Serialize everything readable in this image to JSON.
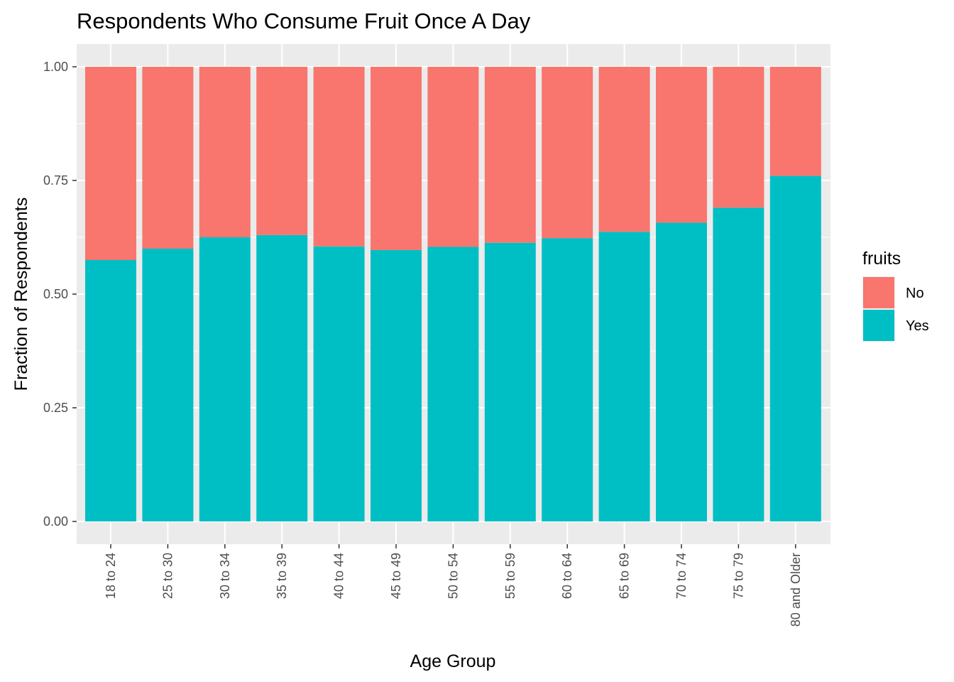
{
  "chart_data": {
    "type": "bar",
    "stacked": true,
    "normalized": true,
    "title": "Respondents Who Consume Fruit Once A Day",
    "xlabel": "Age Group",
    "ylabel": "Fraction of Respondents",
    "ylim": [
      0,
      1
    ],
    "yticks": [
      "0.00",
      "0.25",
      "0.50",
      "0.75",
      "1.00"
    ],
    "ytick_values": [
      0,
      0.25,
      0.5,
      0.75,
      1
    ],
    "grid": true,
    "background": "#ebebeb",
    "categories": [
      "18 to 24",
      "25 to 30",
      "30 to 34",
      "35 to 39",
      "40 to 44",
      "45 to 49",
      "50 to 54",
      "55 to 59",
      "60 to 64",
      "65 to 69",
      "70 to 74",
      "75 to 79",
      "80 and Older"
    ],
    "series": [
      {
        "name": "Yes",
        "color": "#00bfc4",
        "values": [
          0.575,
          0.6,
          0.625,
          0.63,
          0.605,
          0.597,
          0.604,
          0.613,
          0.623,
          0.637,
          0.657,
          0.69,
          0.76
        ]
      },
      {
        "name": "No",
        "color": "#f8766d",
        "values": [
          0.425,
          0.4,
          0.375,
          0.37,
          0.395,
          0.403,
          0.396,
          0.387,
          0.377,
          0.363,
          0.343,
          0.31,
          0.24
        ]
      }
    ],
    "legend": {
      "title": "fruits",
      "position": "right",
      "entries": [
        {
          "label": "No",
          "color": "#f8766d"
        },
        {
          "label": "Yes",
          "color": "#00bfc4"
        }
      ]
    }
  }
}
